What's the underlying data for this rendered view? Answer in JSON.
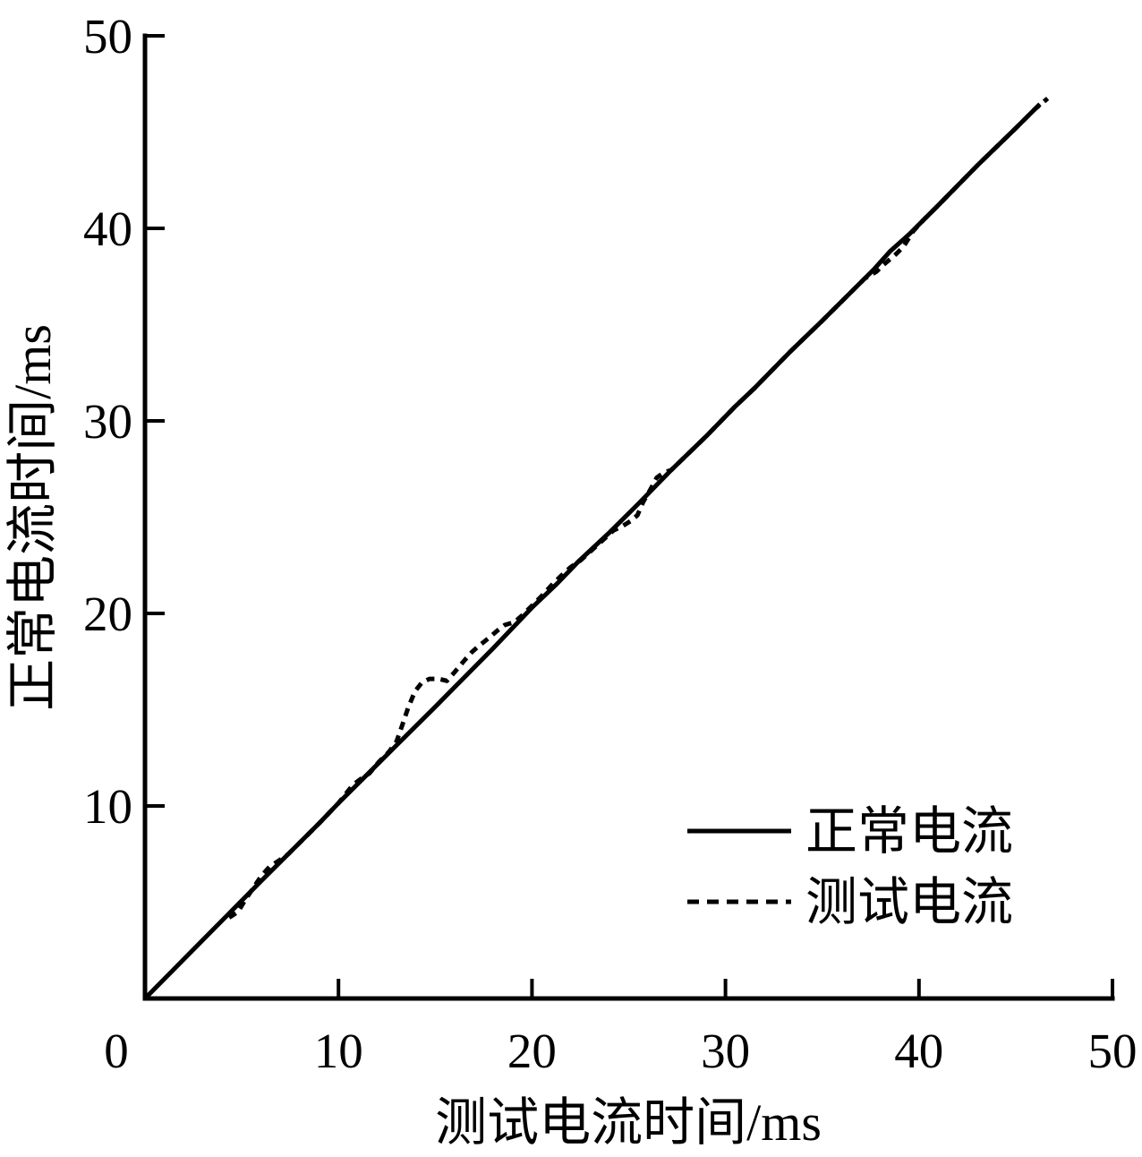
{
  "colors": {
    "foreground": "#000000",
    "background": "#ffffff"
  },
  "legend": {
    "normal_label": "正常电流",
    "test_label": "测试电流"
  },
  "chart_data": {
    "type": "line",
    "title": "",
    "xlabel": "测试电流时间/ms",
    "ylabel": "正常电流时间/ms",
    "xlim": [
      0,
      50
    ],
    "ylim": [
      0,
      50
    ],
    "xticks": [
      0,
      10,
      20,
      30,
      40,
      50
    ],
    "yticks": [
      10,
      20,
      30,
      40,
      50
    ],
    "grid": false,
    "legend_position": "inside-lower-right",
    "series": [
      {
        "name": "正常电流",
        "style": "solid",
        "color": "#000000",
        "points": [
          [
            0,
            0
          ],
          [
            3,
            3.05
          ],
          [
            6,
            6.1
          ],
          [
            9,
            9.1
          ],
          [
            10,
            10.15
          ],
          [
            12,
            12.15
          ],
          [
            12.9,
            13.05
          ],
          [
            15,
            15.15
          ],
          [
            18,
            18.2
          ],
          [
            20,
            20.3
          ],
          [
            21.3,
            21.55
          ],
          [
            22.4,
            22.7
          ],
          [
            24,
            24.2
          ],
          [
            25.5,
            25.7
          ],
          [
            27.2,
            27.45
          ],
          [
            29,
            29.2
          ],
          [
            30.5,
            30.75
          ],
          [
            31.5,
            31.7
          ],
          [
            33.3,
            33.55
          ],
          [
            35,
            35.2
          ],
          [
            36.5,
            36.7
          ],
          [
            37.7,
            37.9
          ],
          [
            38.5,
            38.8
          ],
          [
            39.5,
            39.7
          ],
          [
            41,
            41.2
          ],
          [
            43,
            43.25
          ],
          [
            45,
            45.2
          ],
          [
            46.25,
            46.45
          ]
        ]
      },
      {
        "name": "测试电流",
        "style": "dashed",
        "color": "#000000",
        "points": [
          [
            4.35,
            4.2
          ],
          [
            4.8,
            4.5
          ],
          [
            5.2,
            5.15
          ],
          [
            5.6,
            5.75
          ],
          [
            6.0,
            6.35
          ],
          [
            6.45,
            6.85
          ],
          [
            6.9,
            7.15
          ],
          [
            7.4,
            7.5
          ],
          [
            8,
            8.1
          ],
          [
            9,
            9.1
          ],
          [
            10,
            10.15
          ],
          [
            10.35,
            10.6
          ],
          [
            10.75,
            11.1
          ],
          [
            11.15,
            11.4
          ],
          [
            11.6,
            11.7
          ],
          [
            12.1,
            12.3
          ],
          [
            12.6,
            12.8
          ],
          [
            13.0,
            13.35
          ],
          [
            13.3,
            14.2
          ],
          [
            13.6,
            15.1
          ],
          [
            13.95,
            15.95
          ],
          [
            14.3,
            16.4
          ],
          [
            14.7,
            16.6
          ],
          [
            15.2,
            16.6
          ],
          [
            15.6,
            16.5
          ],
          [
            16.0,
            16.95
          ],
          [
            16.5,
            17.55
          ],
          [
            16.9,
            18.0
          ],
          [
            17.3,
            18.35
          ],
          [
            17.8,
            18.75
          ],
          [
            18.2,
            19.1
          ],
          [
            18.6,
            19.4
          ],
          [
            19.1,
            19.55
          ],
          [
            19.5,
            19.9
          ],
          [
            20.0,
            20.4
          ],
          [
            20.5,
            20.9
          ],
          [
            21.0,
            21.45
          ],
          [
            21.5,
            21.95
          ],
          [
            22.0,
            22.4
          ],
          [
            22.5,
            22.75
          ],
          [
            23.0,
            23.2
          ],
          [
            23.6,
            23.75
          ],
          [
            24.2,
            24.3
          ],
          [
            24.7,
            24.55
          ],
          [
            25.1,
            24.8
          ],
          [
            25.45,
            25.1
          ],
          [
            25.75,
            25.8
          ],
          [
            26.1,
            26.4
          ],
          [
            26.45,
            27.05
          ],
          [
            26.8,
            27.3
          ],
          [
            27.2,
            27.45
          ],
          [
            29,
            29.2
          ],
          [
            30.5,
            30.75
          ],
          [
            31.5,
            31.7
          ],
          [
            33.3,
            33.55
          ],
          [
            35,
            35.2
          ],
          [
            36.5,
            36.7
          ],
          [
            37.2,
            37.4
          ],
          [
            37.8,
            37.75
          ],
          [
            38.1,
            38.05
          ],
          [
            38.8,
            38.65
          ],
          [
            39.2,
            39.05
          ],
          [
            39.7,
            39.85
          ],
          [
            40.2,
            40.4
          ],
          [
            41,
            41.2
          ],
          [
            43,
            43.25
          ],
          [
            45,
            45.2
          ],
          [
            46.0,
            46.2
          ],
          [
            46.65,
            46.75
          ]
        ]
      }
    ]
  }
}
